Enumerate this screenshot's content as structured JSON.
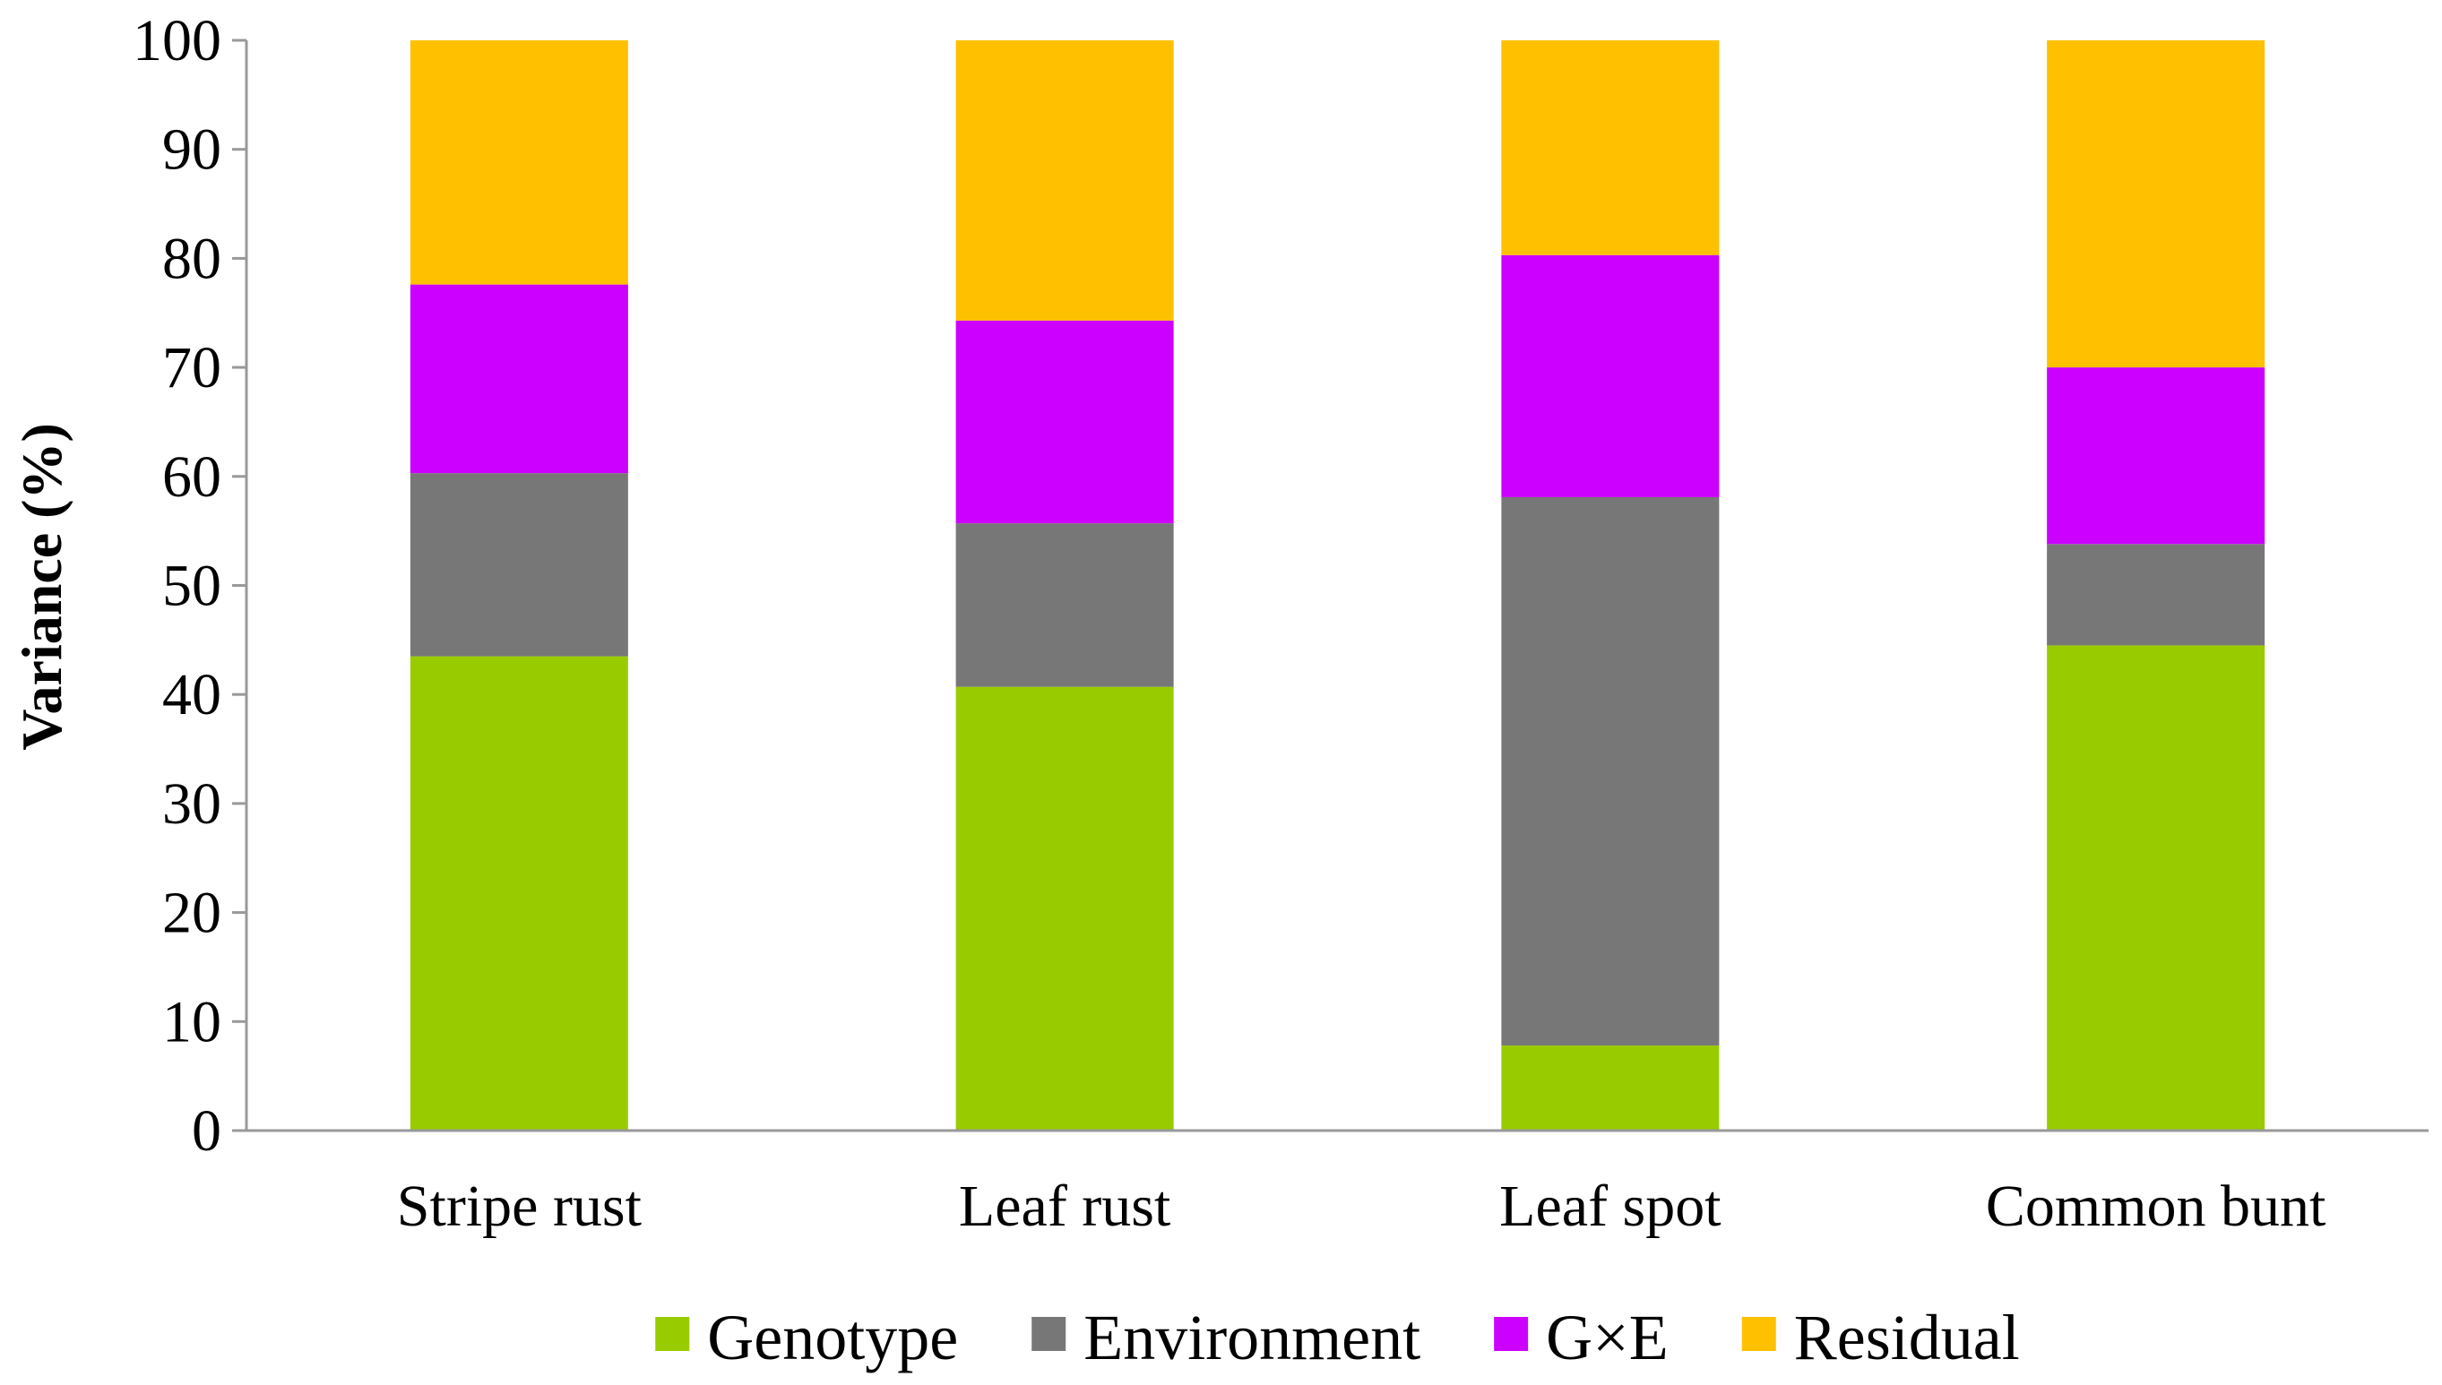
{
  "chart_data": {
    "type": "bar",
    "stacked": true,
    "title": "",
    "xlabel": "",
    "ylabel": "Variance (%)",
    "ylim": [
      0,
      100
    ],
    "yticks": [
      0,
      10,
      20,
      30,
      40,
      50,
      60,
      70,
      80,
      90,
      100
    ],
    "grid": false,
    "legend_position": "bottom",
    "categories": [
      "Stripe rust",
      "Leaf rust",
      "Leaf spot",
      "Common bunt"
    ],
    "series": [
      {
        "name": "Genotype",
        "color": "#99CC00",
        "values": [
          43.5,
          40.7,
          7.8,
          44.5
        ]
      },
      {
        "name": "Environment",
        "color": "#777777",
        "values": [
          16.8,
          15.0,
          50.3,
          9.3
        ]
      },
      {
        "name": "G×E",
        "color": "#CC00FF",
        "values": [
          17.3,
          18.6,
          22.2,
          16.2
        ]
      },
      {
        "name": "Residual",
        "color": "#FFC000",
        "values": [
          22.4,
          25.7,
          19.7,
          30.0
        ]
      }
    ]
  }
}
